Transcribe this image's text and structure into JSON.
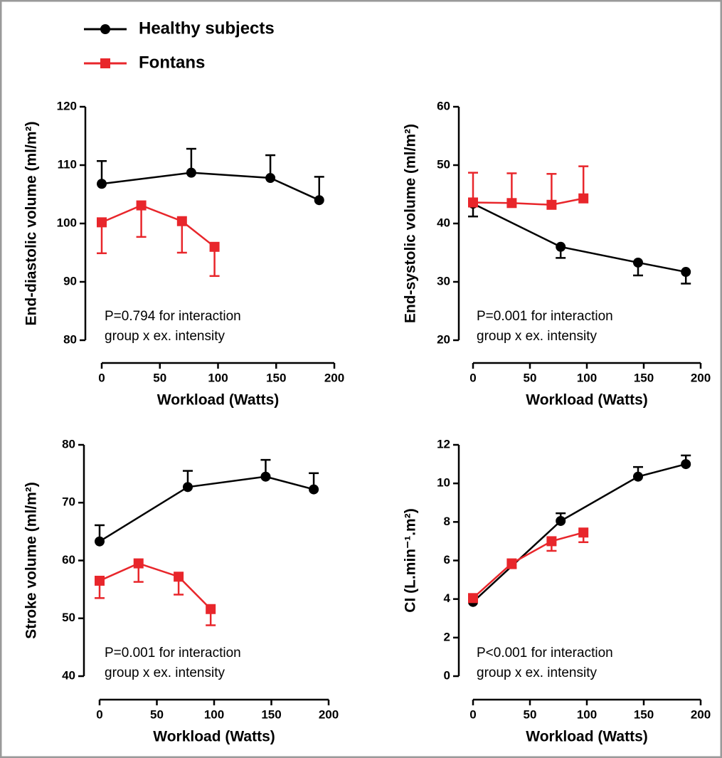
{
  "legend": {
    "entries": [
      {
        "name": "Healthy subjects",
        "color": "#000000",
        "marker": "circle"
      },
      {
        "name": "Fontans",
        "color": "#e8262b",
        "marker": "square"
      }
    ]
  },
  "chart_data": [
    {
      "type": "line",
      "y_label": "End-diastolic volume (ml/m²)",
      "x_label": "Workload (Watts)",
      "annotation": [
        "P=0.794 for interaction",
        "group x ex. intensity"
      ],
      "xlim": [
        0,
        200
      ],
      "xticks": [
        0,
        50,
        100,
        150,
        200
      ],
      "ylim": [
        80,
        120
      ],
      "yticks": [
        80,
        90,
        100,
        110,
        120
      ],
      "series": [
        {
          "color": "#000000",
          "marker": "circle",
          "error_direction": "up",
          "x": [
            0,
            77,
            145,
            187
          ],
          "values": [
            106.8,
            108.7,
            107.8,
            104.0
          ],
          "errors": [
            3.9,
            4.1,
            3.9,
            4.0
          ]
        },
        {
          "color": "#e8262b",
          "marker": "square",
          "error_direction": "down",
          "x": [
            0,
            34,
            69,
            97
          ],
          "values": [
            100.2,
            103.1,
            100.4,
            96.0
          ],
          "errors": [
            5.3,
            5.4,
            5.4,
            5.0
          ]
        }
      ]
    },
    {
      "type": "line",
      "y_label": "End-systolic volume (ml/m²)",
      "x_label": "Workload (Watts)",
      "annotation": [
        "P=0.001 for interaction",
        "group x ex. intensity"
      ],
      "xlim": [
        0,
        200
      ],
      "xticks": [
        0,
        50,
        100,
        150,
        200
      ],
      "ylim": [
        20,
        60
      ],
      "yticks": [
        20,
        30,
        40,
        50,
        60
      ],
      "series": [
        {
          "color": "#000000",
          "marker": "circle",
          "error_direction": "down",
          "x": [
            0,
            77,
            145,
            187
          ],
          "values": [
            43.4,
            36.0,
            33.3,
            31.7
          ],
          "errors": [
            2.2,
            1.9,
            2.2,
            2.0
          ]
        },
        {
          "color": "#e8262b",
          "marker": "square",
          "error_direction": "up",
          "x": [
            0,
            34,
            69,
            97
          ],
          "values": [
            43.6,
            43.5,
            43.2,
            44.3
          ],
          "errors": [
            5.1,
            5.1,
            5.3,
            5.5
          ]
        }
      ]
    },
    {
      "type": "line",
      "y_label": "Stroke volume (ml/m²)",
      "x_label": "Workload (Watts)",
      "annotation": [
        "P=0.001 for interaction",
        "group x ex. intensity"
      ],
      "xlim": [
        0,
        200
      ],
      "xticks": [
        0,
        50,
        100,
        150,
        200
      ],
      "ylim": [
        40,
        80
      ],
      "yticks": [
        40,
        50,
        60,
        70,
        80
      ],
      "series": [
        {
          "color": "#000000",
          "marker": "circle",
          "error_direction": "up",
          "x": [
            0,
            77,
            145,
            187
          ],
          "values": [
            63.3,
            72.7,
            74.5,
            72.3
          ],
          "errors": [
            2.8,
            2.8,
            2.9,
            2.8
          ]
        },
        {
          "color": "#e8262b",
          "marker": "square",
          "error_direction": "down",
          "x": [
            0,
            34,
            69,
            97
          ],
          "values": [
            56.5,
            59.5,
            57.2,
            51.6
          ],
          "errors": [
            3.0,
            3.2,
            3.1,
            2.8
          ]
        }
      ]
    },
    {
      "type": "line",
      "y_label": "CI (L.min⁻¹.m²)",
      "x_label": "Workload (Watts)",
      "annotation": [
        "P<0.001 for interaction",
        "group x ex. intensity"
      ],
      "xlim": [
        0,
        200
      ],
      "xticks": [
        0,
        50,
        100,
        150,
        200
      ],
      "ylim": [
        0,
        12
      ],
      "yticks": [
        0,
        2,
        4,
        6,
        8,
        10,
        12
      ],
      "series": [
        {
          "color": "#000000",
          "marker": "circle",
          "error_direction": "up",
          "x": [
            0,
            77,
            145,
            187
          ],
          "values": [
            3.85,
            8.05,
            10.35,
            11.0
          ],
          "errors": [
            0.15,
            0.4,
            0.5,
            0.45
          ]
        },
        {
          "color": "#e8262b",
          "marker": "square",
          "error_direction": "down",
          "x": [
            0,
            34,
            69,
            97
          ],
          "values": [
            4.05,
            5.85,
            7.0,
            7.45
          ],
          "errors": [
            0.15,
            0.25,
            0.5,
            0.5
          ]
        }
      ]
    }
  ]
}
